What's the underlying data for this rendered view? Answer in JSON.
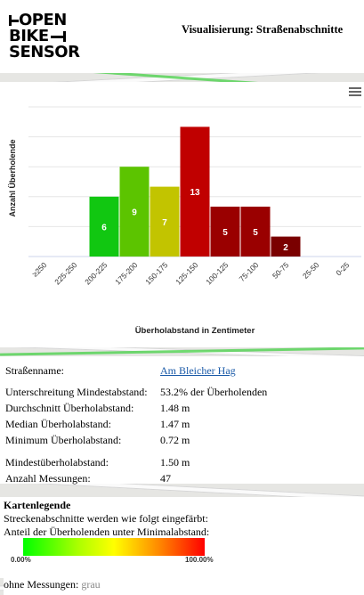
{
  "header": {
    "logo_lines": [
      "OPEN",
      "BIKE",
      "SENSOR"
    ],
    "title": "Visualisierung: Straßenabschnitte"
  },
  "chart_data": {
    "type": "bar",
    "categories": [
      "≥250",
      "225-250",
      "200-225",
      "175-200",
      "150-175",
      "125-150",
      "100-125",
      "75-100",
      "50-75",
      "25-50",
      "0-25"
    ],
    "values": [
      0,
      0,
      6,
      9,
      7,
      13,
      5,
      5,
      2,
      0,
      0
    ],
    "colors": [
      "#00c800",
      "#00c800",
      "#11c711",
      "#5cc400",
      "#c2c400",
      "#c00000",
      "#9a0000",
      "#9a0000",
      "#7a0000",
      "#7a0000",
      "#7a0000"
    ],
    "title": "",
    "xlabel": "Überholabstand in Zentimeter",
    "ylabel": "Anzahl Überholende",
    "ylim": [
      0,
      15
    ],
    "grid": true
  },
  "stats": {
    "street_label": "Straßenname:",
    "street_value": "Am Bleicher Hag",
    "rows": [
      {
        "label": "Unterschreitung Mindestabstand:",
        "value": "53.2% der Überholenden"
      },
      {
        "label": "Durchschnitt Überholabstand:",
        "value": "1.48 m"
      },
      {
        "label": "Median Überholabstand:",
        "value": "1.47 m"
      },
      {
        "label": "Minimum Überholabstand:",
        "value": "0.72 m"
      },
      {
        "label": "Mindestüberholabstand:",
        "value": "1.50 m"
      },
      {
        "label": "Anzahl Messungen:",
        "value": "47"
      }
    ]
  },
  "legend": {
    "title": "Kartenlegende",
    "line1": "Streckenabschnitte werden wie folgt eingefärbt:",
    "line2": "Anteil der Überholenden unter Minimalabstand:",
    "min_label": "0.00%",
    "max_label": "100.00%",
    "nodata_label": "ohne Messungen:",
    "nodata_value": "grau"
  },
  "icons": {
    "menu": "hamburger-menu-icon"
  }
}
